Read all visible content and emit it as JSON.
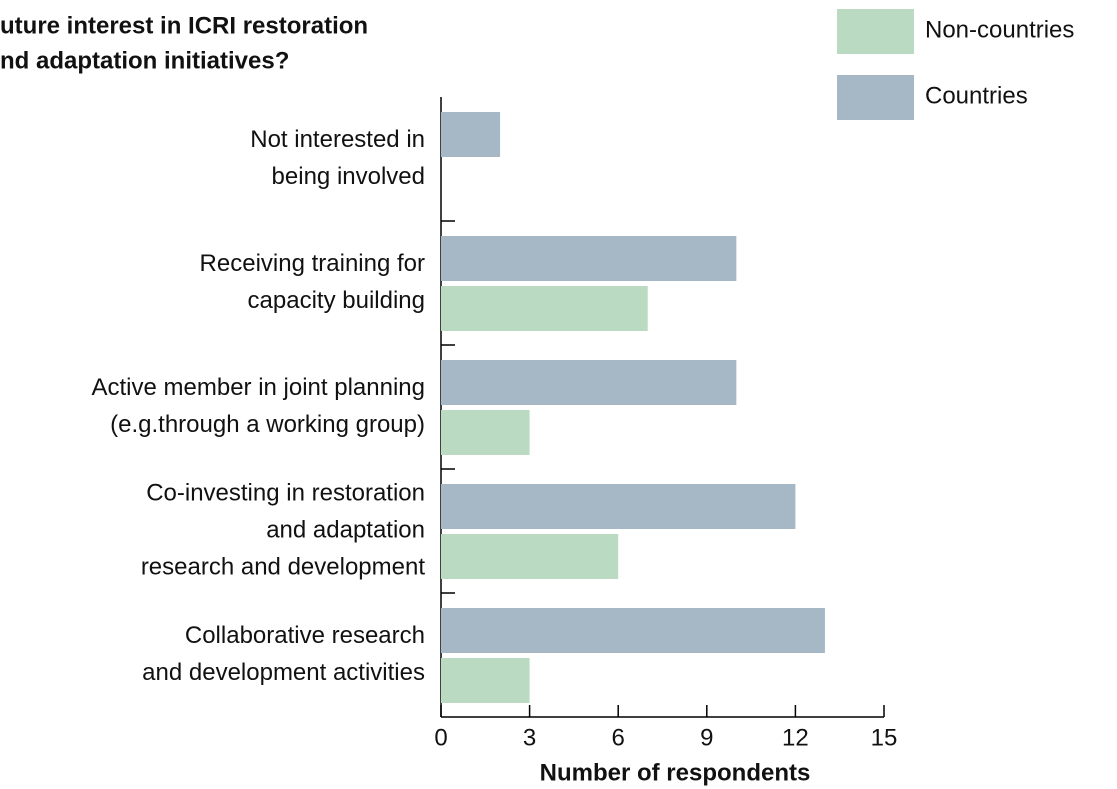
{
  "chart_data": {
    "type": "hbar",
    "title": [
      "uture interest in ICRI restoration",
      "nd adaptation initiatives?"
    ],
    "categories": [
      [
        "Not interested in",
        "being involved"
      ],
      [
        "Receiving training for",
        "capacity building"
      ],
      [
        "Active member in joint planning",
        "(e.g.through a working group)"
      ],
      [
        "Co-investing in restoration",
        "and adaptation",
        "research and development"
      ],
      [
        "Collaborative research",
        "and development activities"
      ]
    ],
    "series": [
      {
        "name": "Non-countries",
        "color": "#badbc1",
        "values": [
          0,
          7,
          3,
          6,
          3
        ]
      },
      {
        "name": "Countries",
        "color": "#a6b7c5",
        "values": [
          2,
          10,
          10,
          12,
          13
        ]
      }
    ],
    "xlabel": "Number of respondents",
    "xlim": [
      0,
      15
    ],
    "xticks": [
      0,
      3,
      6,
      9,
      12,
      15
    ],
    "legend": "top-right"
  }
}
